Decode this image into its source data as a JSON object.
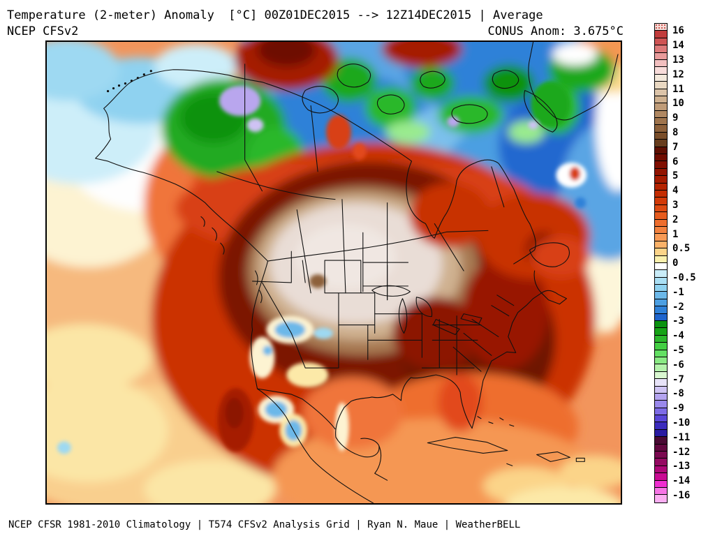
{
  "header": {
    "title": "Temperature (2-meter) Anomaly  [°C] 00Z01DEC2015 --> 12Z14DEC2015 | Average",
    "model": "NCEP CFSv2",
    "conus_anom": "CONUS Anom: 3.675°C"
  },
  "footer": {
    "credit": "NCEP CFSR 1981-2010 Climatology | T574 CFSv2 Analysis Grid | Ryan N. Maue | WeatherBELL"
  },
  "colorbar": {
    "unit": "°C",
    "labels": [
      "16",
      "14",
      "13",
      "12",
      "11",
      "10",
      "9",
      "8",
      "7",
      "6",
      "5",
      "4",
      "3",
      "2",
      "1",
      "0.5",
      "0",
      "-0.5",
      "-1",
      "-2",
      "-3",
      "-4",
      "-5",
      "-6",
      "-7",
      "-8",
      "-9",
      "-10",
      "-11",
      "-12",
      "-13",
      "-14",
      "-16"
    ],
    "cells": [
      "stipple",
      "#c23c3c",
      "#cf5454",
      "#dd7a7a",
      "#e89b9b",
      "#f2bfbf",
      "#f8dcda",
      "#f3e9dc",
      "#e9d8c2",
      "#dcc4a9",
      "#cfb190",
      "#c09c78",
      "#b08862",
      "#9f744d",
      "#8d603a",
      "#7a4e2a",
      "#683d1d",
      "#5e0f02",
      "#6f0c00",
      "#800e00",
      "#921400",
      "#a51b00",
      "#b52300",
      "#c42d02",
      "#d23a08",
      "#dd4a12",
      "#e65c1e",
      "#ee6e2e",
      "#f3823f",
      "#f89a55",
      "#fbb269",
      "#fcd489",
      "#fbf0ad",
      "#ffffff",
      "#c9ecf8",
      "#aadff4",
      "#8fd2f0",
      "#6cb8e9",
      "#4c9fe2",
      "#2f81d8",
      "#1f65cd",
      "#0b9210",
      "#16a316",
      "#2cb82c",
      "#44cf44",
      "#63e063",
      "#8aea84",
      "#b4f2ab",
      "#d9f7d0",
      "#e7e3f8",
      "#cfc4f4",
      "#b4a4f0",
      "#9a89ec",
      "#7e6ce6",
      "#5a47d8",
      "#3b2bbd",
      "#2a1ba2",
      "#4a0a34",
      "#620840",
      "#7b0950",
      "#940a62",
      "#ae0878",
      "#c90b93",
      "#ef2ed0",
      "#f775e6",
      "#fbaef2"
    ]
  }
}
